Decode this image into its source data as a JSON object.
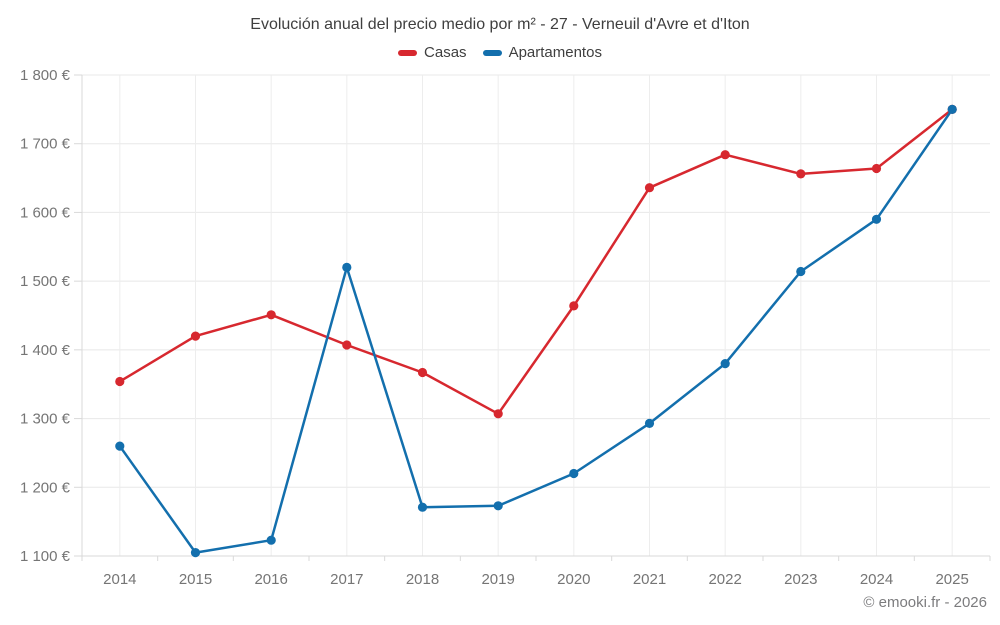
{
  "footer": {
    "text": "© emooki.fr - 2026"
  },
  "chart_data": {
    "type": "line",
    "title": "Evolución anual del precio medio por m² - 27 - Verneuil d'Avre et d'Iton",
    "categories": [
      "2014",
      "2015",
      "2016",
      "2017",
      "2018",
      "2019",
      "2020",
      "2021",
      "2022",
      "2023",
      "2024",
      "2025"
    ],
    "series": [
      {
        "name": "Casas",
        "color": "#d7282f",
        "values": [
          1354,
          1420,
          1451,
          1407,
          1367,
          1307,
          1464,
          1636,
          1684,
          1656,
          1664,
          1750
        ]
      },
      {
        "name": "Apartamentos",
        "color": "#136fad",
        "values": [
          1260,
          1105,
          1123,
          1520,
          1171,
          1173,
          1220,
          1293,
          1380,
          1514,
          1590,
          1750
        ]
      }
    ],
    "ylim": [
      1100,
      1800
    ],
    "ytick_step": 100,
    "ytick_labels": [
      "1 100 €",
      "1 200 €",
      "1 300 €",
      "1 400 €",
      "1 500 €",
      "1 600 €",
      "1 700 €",
      "1 800 €"
    ],
    "xlabel": "",
    "ylabel": "",
    "grid": true,
    "legend_position": "top",
    "axis_label_color": "#757575",
    "grid_color": "#e8e8e8",
    "axis_line_color": "#d9d9d9"
  }
}
